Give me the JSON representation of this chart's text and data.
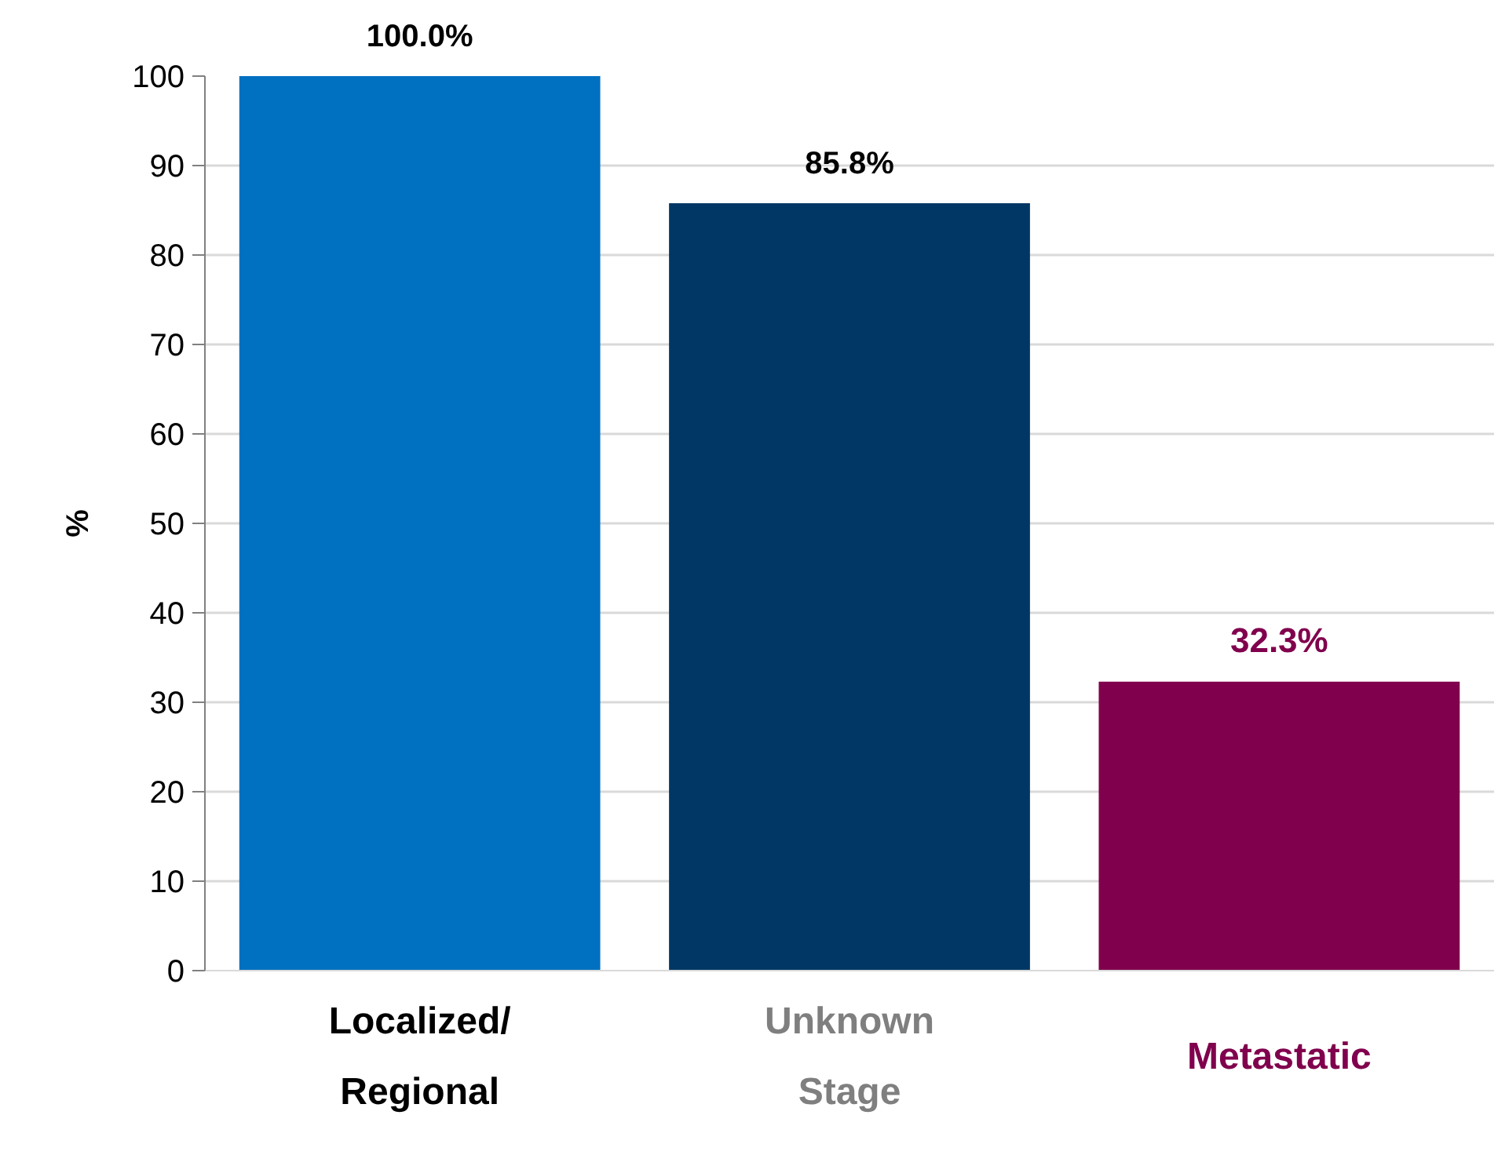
{
  "chart_data": {
    "type": "bar",
    "ylabel": "%",
    "categories": [
      "Localized/ Regional",
      "Unknown Stage",
      "Metastatic"
    ],
    "values": [
      100.0,
      85.8,
      32.3
    ],
    "colors": [
      "#0070c0",
      "#003764",
      "#80004d"
    ],
    "ylim": [
      0,
      100
    ],
    "yticks": [
      0,
      10,
      20,
      30,
      40,
      50,
      60,
      70,
      80,
      90,
      100
    ],
    "grid": "y",
    "value_labels": [
      "100.0%",
      "85.8%",
      "32.3%"
    ]
  }
}
